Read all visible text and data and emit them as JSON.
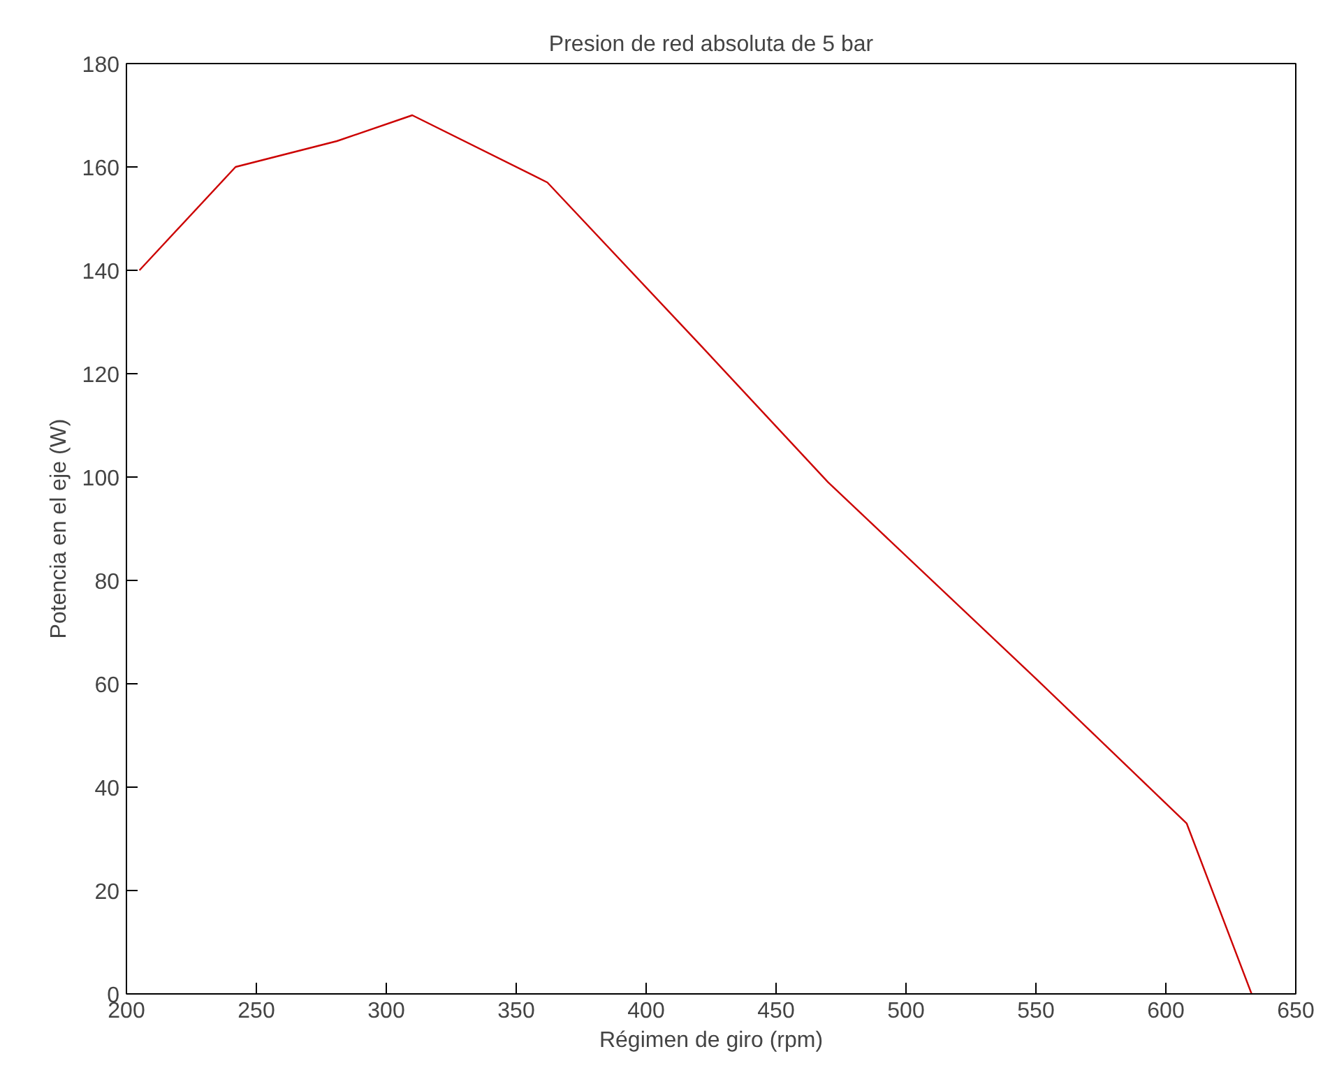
{
  "chart_data": {
    "type": "line",
    "title": "Presion de red absoluta de 5 bar",
    "xlabel": "Régimen de giro (rpm)",
    "ylabel": "Potencia en el eje (W)",
    "x": [
      205,
      242,
      281,
      310,
      362,
      420,
      470,
      550,
      608,
      633
    ],
    "series": [
      {
        "color": "#cc0000",
        "values": [
          140,
          160,
          165,
          170,
          157,
          126,
          99,
          61,
          33,
          0
        ]
      }
    ],
    "xlim": [
      200,
      650
    ],
    "ylim": [
      0,
      180
    ],
    "xticks": [
      200,
      250,
      300,
      350,
      400,
      450,
      500,
      550,
      600,
      650
    ],
    "yticks": [
      0,
      20,
      40,
      60,
      80,
      100,
      120,
      140,
      160,
      180
    ],
    "grid": false,
    "marker": "none",
    "line_style": "solid"
  }
}
